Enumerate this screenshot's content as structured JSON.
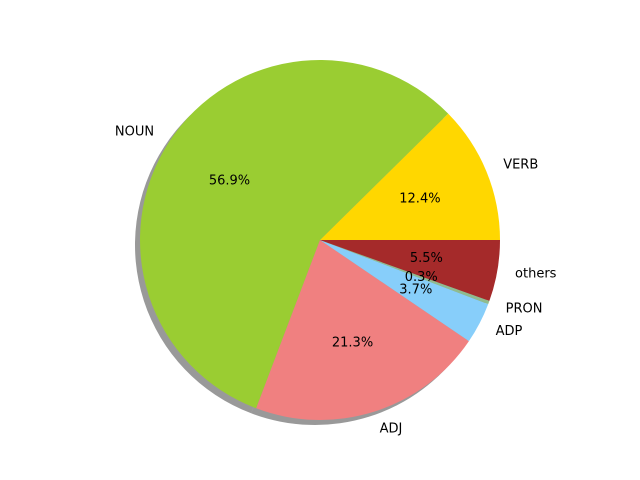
{
  "chart_data": {
    "type": "pie",
    "title": "",
    "shadow": true,
    "start_angle_deg": 0,
    "direction": "counterclockwise",
    "slices": [
      {
        "label": "VERB",
        "value": 12.4,
        "pct_label": "12.4%",
        "color": "#FFD700"
      },
      {
        "label": "NOUN",
        "value": 56.9,
        "pct_label": "56.9%",
        "color": "#9ACD32"
      },
      {
        "label": "ADJ",
        "value": 21.3,
        "pct_label": "21.3%",
        "color": "#F08080"
      },
      {
        "label": "ADP",
        "value": 3.7,
        "pct_label": "3.7%",
        "color": "#87CEFA"
      },
      {
        "label": "PRON",
        "value": 0.3,
        "pct_label": "0.3%",
        "color": "#8FBC8F"
      },
      {
        "label": "others",
        "value": 5.5,
        "pct_label": "5.5%",
        "color": "#A52A2A"
      }
    ]
  }
}
